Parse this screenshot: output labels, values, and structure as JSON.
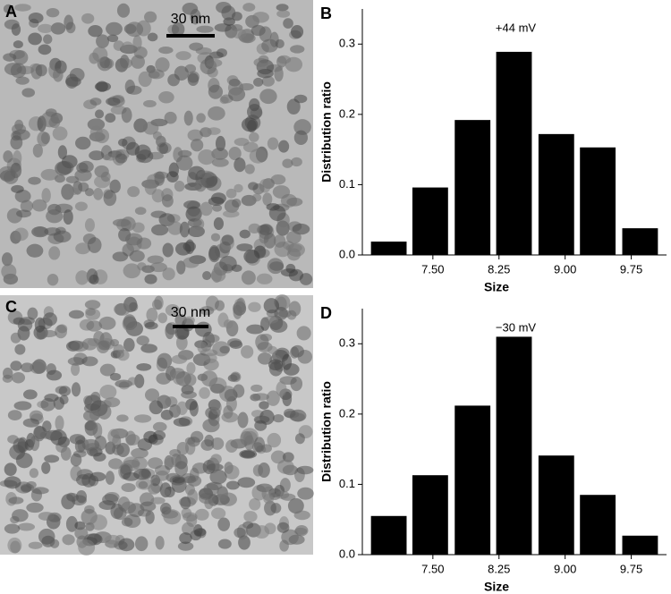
{
  "panels": [
    {
      "label": "A",
      "scale_bar": "30 nm"
    },
    {
      "label": "C",
      "scale_bar": "30 nm"
    }
  ],
  "chart_data": [
    {
      "type": "bar",
      "panel_label": "B",
      "annotation": "+44 mV",
      "x_label": "Size",
      "y_label": "Distribution ratio",
      "x": [
        7.0,
        7.47,
        7.95,
        8.42,
        8.9,
        9.37,
        9.85
      ],
      "values": [
        0.019,
        0.096,
        0.192,
        0.289,
        0.172,
        0.153,
        0.038
      ],
      "color": "#000000",
      "xlim": [
        6.7,
        10.15
      ],
      "ylim": [
        0,
        0.35
      ],
      "xticks": [
        {
          "value": 7.5,
          "label": "7.50"
        },
        {
          "value": 8.25,
          "label": "8.25"
        },
        {
          "value": 9.0,
          "label": "9.00"
        },
        {
          "value": 9.75,
          "label": "9.75"
        }
      ],
      "yticks": [
        {
          "value": 0,
          "label": "0.0"
        },
        0.1,
        0.2,
        0.3
      ]
    },
    {
      "type": "bar",
      "panel_label": "D",
      "annotation": "−30 mV",
      "x_label": "Size",
      "y_label": "Distribution ratio",
      "x": [
        7.0,
        7.47,
        7.95,
        8.42,
        8.9,
        9.37,
        9.85
      ],
      "values": [
        0.055,
        0.113,
        0.212,
        0.31,
        0.141,
        0.085,
        0.027
      ],
      "color": "#000000",
      "xlim": [
        6.7,
        10.15
      ],
      "ylim": [
        0,
        0.35
      ],
      "xticks": [
        {
          "value": 7.5,
          "label": "7.50"
        },
        {
          "value": 8.25,
          "label": "8.25"
        },
        {
          "value": 9.0,
          "label": "9.00"
        },
        {
          "value": 9.75,
          "label": "9.75"
        }
      ],
      "yticks": [
        {
          "value": 0,
          "label": "0.0"
        },
        0.1,
        0.2,
        0.3
      ]
    }
  ]
}
